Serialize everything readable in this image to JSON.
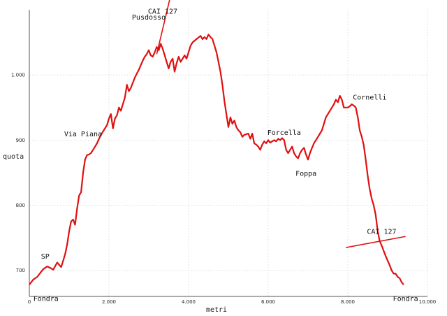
{
  "chart_data": {
    "type": "line",
    "title": "",
    "xlabel": "metri",
    "ylabel": "quota",
    "xlim": [
      0,
      10000
    ],
    "ylim": [
      660,
      1100
    ],
    "x_ticks": [
      {
        "value": 0,
        "label": "0"
      },
      {
        "value": 2000,
        "label": "2.000"
      },
      {
        "value": 4000,
        "label": "4.000"
      },
      {
        "value": 6000,
        "label": "6.000"
      },
      {
        "value": 8000,
        "label": "8.000"
      },
      {
        "value": 10000,
        "label": "10.000"
      }
    ],
    "y_ticks": [
      {
        "value": 700,
        "label": "700"
      },
      {
        "value": 800,
        "label": "800"
      },
      {
        "value": 900,
        "label": "900"
      },
      {
        "value": 1000,
        "label": "1.000"
      }
    ],
    "grid": true,
    "series": [
      {
        "color": "#e01010",
        "points": [
          [
            0,
            678
          ],
          [
            100,
            686
          ],
          [
            200,
            690
          ],
          [
            300,
            698
          ],
          [
            350,
            702
          ],
          [
            450,
            706
          ],
          [
            550,
            703
          ],
          [
            600,
            701
          ],
          [
            700,
            712
          ],
          [
            800,
            705
          ],
          [
            850,
            715
          ],
          [
            900,
            725
          ],
          [
            950,
            740
          ],
          [
            1000,
            760
          ],
          [
            1050,
            775
          ],
          [
            1100,
            778
          ],
          [
            1150,
            770
          ],
          [
            1200,
            795
          ],
          [
            1250,
            815
          ],
          [
            1300,
            820
          ],
          [
            1350,
            850
          ],
          [
            1400,
            870
          ],
          [
            1450,
            877
          ],
          [
            1500,
            878
          ],
          [
            1550,
            880
          ],
          [
            1600,
            885
          ],
          [
            1650,
            890
          ],
          [
            1700,
            895
          ],
          [
            1750,
            902
          ],
          [
            1800,
            908
          ],
          [
            1850,
            913
          ],
          [
            1900,
            918
          ],
          [
            1950,
            923
          ],
          [
            2000,
            933
          ],
          [
            2050,
            940
          ],
          [
            2100,
            918
          ],
          [
            2150,
            933
          ],
          [
            2200,
            938
          ],
          [
            2250,
            950
          ],
          [
            2300,
            945
          ],
          [
            2350,
            955
          ],
          [
            2400,
            965
          ],
          [
            2450,
            985
          ],
          [
            2500,
            975
          ],
          [
            2550,
            980
          ],
          [
            2600,
            988
          ],
          [
            2650,
            996
          ],
          [
            2700,
            1002
          ],
          [
            2750,
            1008
          ],
          [
            2800,
            1015
          ],
          [
            2850,
            1022
          ],
          [
            2900,
            1028
          ],
          [
            2950,
            1032
          ],
          [
            3000,
            1038
          ],
          [
            3050,
            1030
          ],
          [
            3100,
            1028
          ],
          [
            3150,
            1035
          ],
          [
            3200,
            1043
          ],
          [
            3250,
            1038
          ],
          [
            3300,
            1048
          ],
          [
            3350,
            1040
          ],
          [
            3400,
            1030
          ],
          [
            3450,
            1020
          ],
          [
            3500,
            1010
          ],
          [
            3550,
            1020
          ],
          [
            3600,
            1025
          ],
          [
            3650,
            1005
          ],
          [
            3700,
            1018
          ],
          [
            3750,
            1028
          ],
          [
            3800,
            1020
          ],
          [
            3850,
            1025
          ],
          [
            3900,
            1030
          ],
          [
            3950,
            1025
          ],
          [
            4000,
            1035
          ],
          [
            4050,
            1045
          ],
          [
            4100,
            1050
          ],
          [
            4200,
            1055
          ],
          [
            4300,
            1060
          ],
          [
            4350,
            1055
          ],
          [
            4400,
            1058
          ],
          [
            4450,
            1055
          ],
          [
            4500,
            1062
          ],
          [
            4550,
            1058
          ],
          [
            4600,
            1055
          ],
          [
            4650,
            1045
          ],
          [
            4700,
            1035
          ],
          [
            4750,
            1020
          ],
          [
            4800,
            1005
          ],
          [
            4850,
            985
          ],
          [
            4900,
            960
          ],
          [
            4950,
            940
          ],
          [
            5000,
            920
          ],
          [
            5050,
            935
          ],
          [
            5100,
            925
          ],
          [
            5150,
            930
          ],
          [
            5200,
            920
          ],
          [
            5250,
            915
          ],
          [
            5300,
            912
          ],
          [
            5350,
            905
          ],
          [
            5400,
            908
          ],
          [
            5500,
            910
          ],
          [
            5550,
            902
          ],
          [
            5600,
            910
          ],
          [
            5650,
            895
          ],
          [
            5700,
            893
          ],
          [
            5750,
            890
          ],
          [
            5800,
            885
          ],
          [
            5850,
            893
          ],
          [
            5900,
            898
          ],
          [
            5950,
            895
          ],
          [
            6000,
            900
          ],
          [
            6050,
            896
          ],
          [
            6100,
            898
          ],
          [
            6150,
            900
          ],
          [
            6200,
            898
          ],
          [
            6250,
            902
          ],
          [
            6300,
            900
          ],
          [
            6350,
            903
          ],
          [
            6400,
            900
          ],
          [
            6450,
            885
          ],
          [
            6500,
            880
          ],
          [
            6550,
            885
          ],
          [
            6600,
            890
          ],
          [
            6650,
            880
          ],
          [
            6700,
            875
          ],
          [
            6750,
            872
          ],
          [
            6800,
            880
          ],
          [
            6850,
            885
          ],
          [
            6900,
            888
          ],
          [
            6950,
            878
          ],
          [
            7000,
            870
          ],
          [
            7050,
            880
          ],
          [
            7100,
            888
          ],
          [
            7150,
            895
          ],
          [
            7200,
            900
          ],
          [
            7250,
            905
          ],
          [
            7300,
            910
          ],
          [
            7350,
            915
          ],
          [
            7400,
            925
          ],
          [
            7450,
            935
          ],
          [
            7500,
            940
          ],
          [
            7550,
            945
          ],
          [
            7600,
            950
          ],
          [
            7650,
            955
          ],
          [
            7700,
            962
          ],
          [
            7750,
            958
          ],
          [
            7800,
            968
          ],
          [
            7850,
            962
          ],
          [
            7900,
            950
          ],
          [
            8000,
            950
          ],
          [
            8050,
            952
          ],
          [
            8100,
            955
          ],
          [
            8150,
            953
          ],
          [
            8200,
            950
          ],
          [
            8250,
            935
          ],
          [
            8300,
            915
          ],
          [
            8350,
            905
          ],
          [
            8400,
            892
          ],
          [
            8450,
            870
          ],
          [
            8500,
            845
          ],
          [
            8550,
            825
          ],
          [
            8600,
            810
          ],
          [
            8650,
            800
          ],
          [
            8700,
            785
          ],
          [
            8750,
            760
          ],
          [
            8800,
            745
          ],
          [
            8850,
            738
          ],
          [
            8900,
            730
          ],
          [
            8950,
            722
          ],
          [
            9000,
            715
          ],
          [
            9050,
            708
          ],
          [
            9100,
            700
          ],
          [
            9150,
            695
          ],
          [
            9200,
            695
          ],
          [
            9250,
            690
          ],
          [
            9300,
            688
          ],
          [
            9350,
            682
          ],
          [
            9400,
            678
          ]
        ]
      }
    ],
    "markers": [
      {
        "label": "CAI 127",
        "from": [
          3200,
          1032
        ],
        "to": [
          3550,
          1122
        ]
      },
      {
        "label": "CAI 127",
        "from": [
          7950,
          735
        ],
        "to": [
          9450,
          752
        ]
      }
    ],
    "annotations": [
      {
        "text": "Fondra",
        "x": 100,
        "y": 653,
        "anchor": "start"
      },
      {
        "text": "SP",
        "x": 400,
        "y": 718,
        "anchor": "middle"
      },
      {
        "text": "Via Piana",
        "x": 1350,
        "y": 906,
        "anchor": "middle"
      },
      {
        "text": "Pusdosso",
        "x": 3000,
        "y": 1085,
        "anchor": "middle"
      },
      {
        "text": "CAI 127",
        "x": 3350,
        "y": 1094,
        "anchor": "middle"
      },
      {
        "text": "Forcella",
        "x": 6400,
        "y": 908,
        "anchor": "middle"
      },
      {
        "text": "Foppa",
        "x": 6950,
        "y": 845,
        "anchor": "middle"
      },
      {
        "text": "Cornelli",
        "x": 8550,
        "y": 962,
        "anchor": "middle"
      },
      {
        "text": "CAI 127",
        "x": 8850,
        "y": 756,
        "anchor": "middle"
      },
      {
        "text": "Fondra",
        "x": 9450,
        "y": 653,
        "anchor": "middle"
      }
    ]
  }
}
